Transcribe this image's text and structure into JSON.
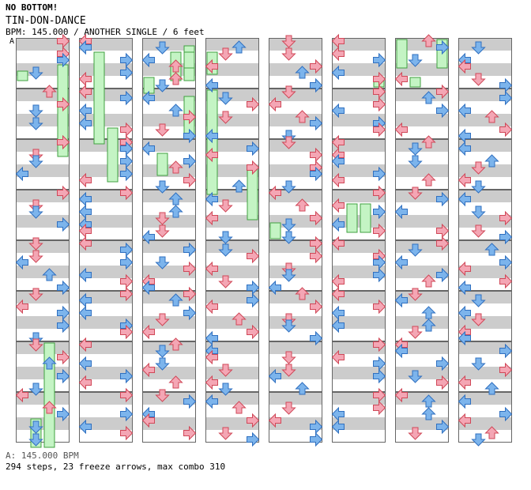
{
  "header": {
    "series": "NO BOTTOM!",
    "song": "TIN-DON-DANCE",
    "info": "BPM: 145.000 / ANOTHER SINGLE / 6 feet",
    "marker": "A"
  },
  "footer": {
    "bpm": "A: 145.000 BPM",
    "stats": "294 steps, 23 freeze arrows, max combo 310"
  },
  "colors": {
    "band": "#cccccc",
    "border": "#666666",
    "red_arrow": "#f4a6b4",
    "red_arrow_outline": "#d04858",
    "blue_arrow": "#7cb4ec",
    "blue_arrow_outline": "#3070c0",
    "freeze": "#c4f4c4",
    "freeze_outline": "#40a040"
  },
  "chart_data": {
    "type": "step-chart",
    "columns": 8,
    "measures_per_column": 8,
    "lanes": [
      "left",
      "down",
      "up",
      "right"
    ],
    "arrow_colors": {
      "quarter": "red",
      "eighth": "blue"
    },
    "note_sets": [
      "LRLL",
      "RDUR",
      "LURD",
      "RLRL",
      "LDRR",
      "DULR",
      "LDDL",
      "URDR"
    ],
    "freeze_arrows": 23,
    "steps": 294,
    "max_combo": 310
  }
}
